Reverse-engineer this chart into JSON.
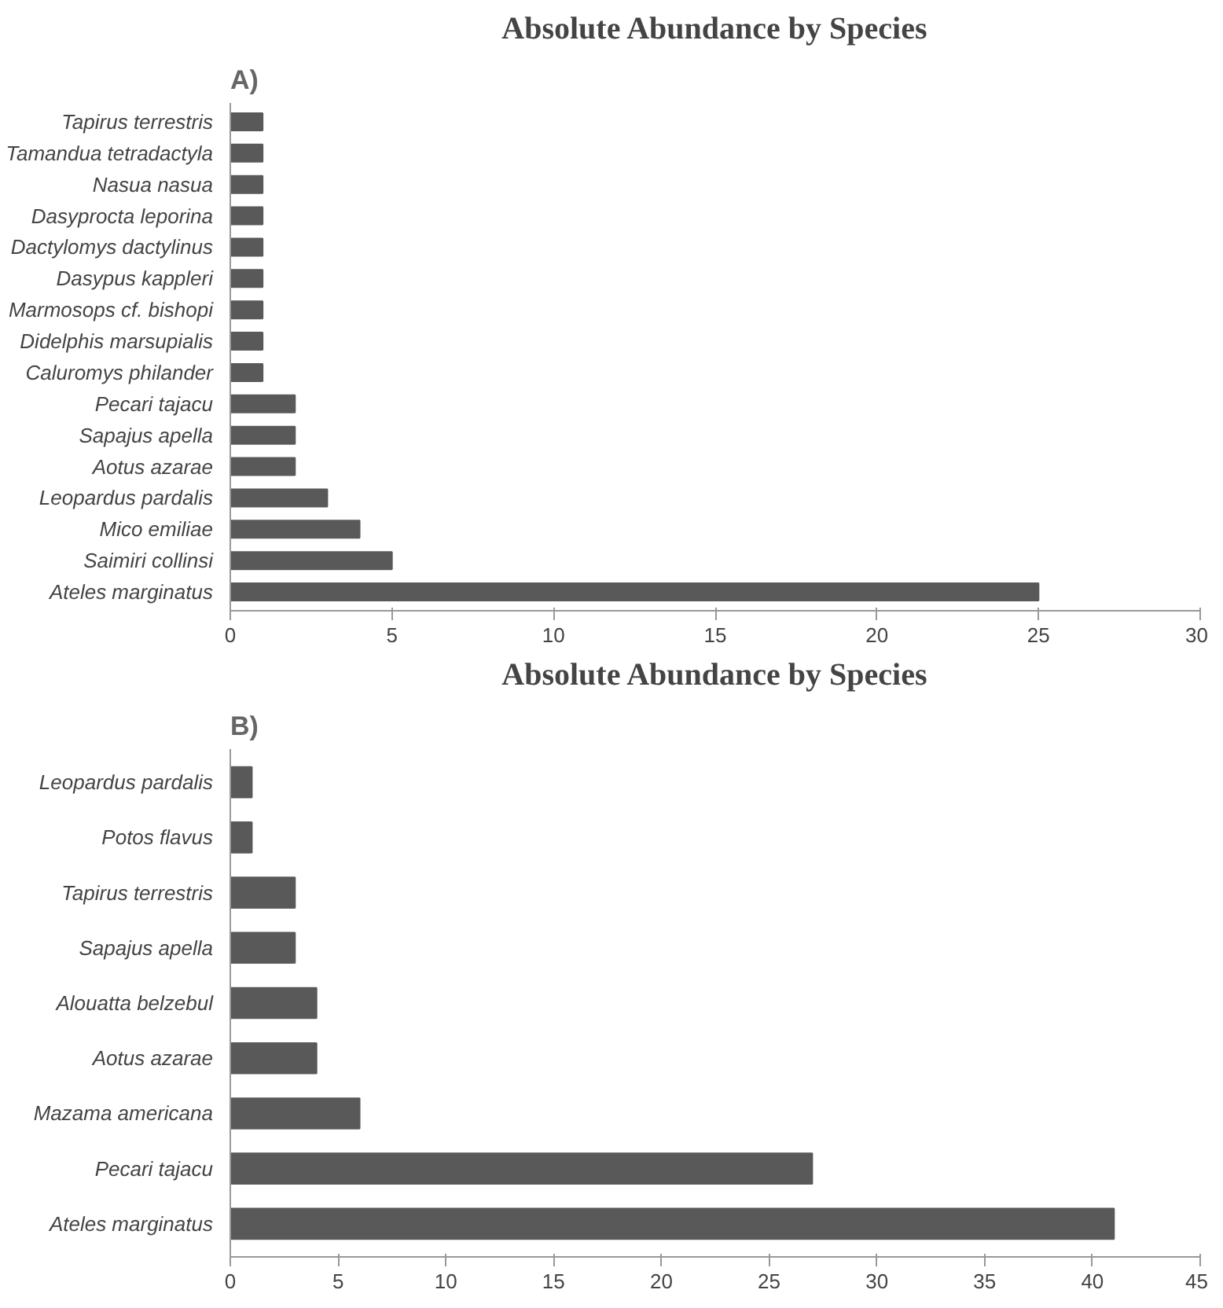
{
  "chart_data": [
    {
      "type": "bar",
      "orientation": "horizontal",
      "title": "Absolute Abundance by Species",
      "annotations": [
        "A)"
      ],
      "categories": [
        "Tapirus terrestris",
        "Tamandua tetradactyla",
        "Nasua nasua",
        "Dasyprocta leporina",
        "Dactylomys dactylinus",
        "Dasypus kappleri",
        "Marmosops cf. bishopi",
        "Didelphis marsupialis",
        "Caluromys philander",
        "Pecari tajacu",
        "Sapajus apella",
        "Aotus azarae",
        "Leopardus pardalis",
        "Mico emiliae",
        "Saimiri collinsi",
        "Ateles marginatus"
      ],
      "values": [
        1,
        1,
        1,
        1,
        1,
        1,
        1,
        1,
        1,
        2,
        2,
        2,
        3,
        4,
        5,
        25
      ],
      "color": "#595959",
      "xlim": [
        0,
        30
      ],
      "xticks": [
        0,
        5,
        10,
        15,
        20,
        25,
        30
      ],
      "grid": false
    },
    {
      "type": "bar",
      "orientation": "horizontal",
      "title": "Absolute Abundance by Species",
      "annotations": [
        "B)"
      ],
      "categories": [
        "Leopardus pardalis",
        "Potos flavus",
        "Tapirus terrestris",
        "Sapajus apella",
        "Alouatta belzebul",
        "Aotus azarae",
        "Mazama americana",
        "Pecari tajacu",
        "Ateles marginatus"
      ],
      "values": [
        1,
        1,
        3,
        3,
        4,
        4,
        6,
        27,
        41
      ],
      "color": "#595959",
      "xlim": [
        0,
        45
      ],
      "xticks": [
        0,
        5,
        10,
        15,
        20,
        25,
        30,
        35,
        40,
        45
      ],
      "grid": false
    }
  ]
}
